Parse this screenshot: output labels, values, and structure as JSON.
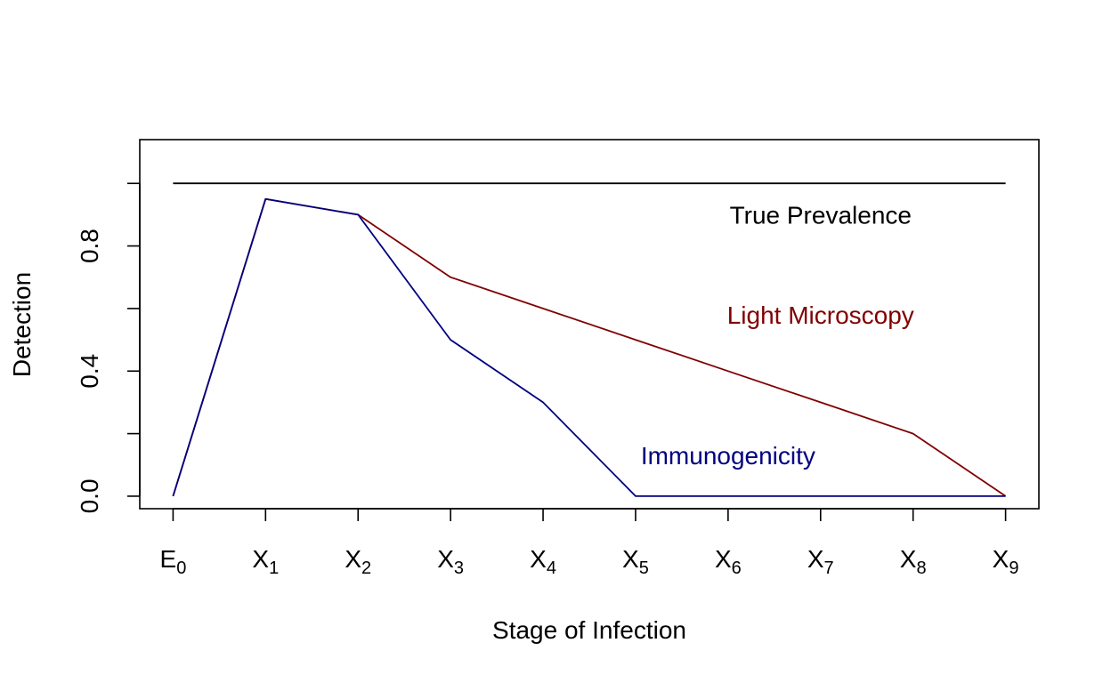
{
  "chart_data": {
    "type": "line",
    "xlabel": "Stage of Infection",
    "ylabel": "Detection",
    "x_ticks": [
      {
        "main": "E",
        "sub": "0"
      },
      {
        "main": "X",
        "sub": "1"
      },
      {
        "main": "X",
        "sub": "2"
      },
      {
        "main": "X",
        "sub": "3"
      },
      {
        "main": "X",
        "sub": "4"
      },
      {
        "main": "X",
        "sub": "5"
      },
      {
        "main": "X",
        "sub": "6"
      },
      {
        "main": "X",
        "sub": "7"
      },
      {
        "main": "X",
        "sub": "8"
      },
      {
        "main": "X",
        "sub": "9"
      }
    ],
    "y_ticks": [
      0,
      0.2,
      0.4,
      0.6,
      0.8,
      1.0
    ],
    "y_tick_labels": [
      "0.0",
      "",
      "0.4",
      "",
      "0.8",
      ""
    ],
    "ylim": [
      -0.04,
      1.14
    ],
    "xlim": [
      -0.36,
      9.36
    ],
    "grid": false,
    "legend": "none",
    "series": [
      {
        "key": "true-prevalence",
        "color": "#000000",
        "x": [
          0,
          9
        ],
        "values": [
          1.0,
          1.0
        ]
      },
      {
        "key": "light-microscopy",
        "color": "#800000",
        "x": [
          0,
          1,
          2,
          3,
          4,
          5,
          6,
          7,
          8,
          9
        ],
        "values": [
          0,
          0.95,
          0.9,
          0.7,
          0.6,
          0.5,
          0.4,
          0.3,
          0.2,
          0
        ]
      },
      {
        "key": "immunogenicity",
        "color": "#000080",
        "x": [
          0,
          1,
          2,
          3,
          4,
          5,
          6,
          7,
          8,
          9
        ],
        "values": [
          0,
          0.95,
          0.9,
          0.5,
          0.3,
          0,
          0,
          0,
          0,
          0
        ]
      }
    ],
    "annotations": [
      {
        "text": "True Prevalence",
        "series_key": "true-prevalence",
        "color": "#000000",
        "x": 7.0,
        "y": 0.9
      },
      {
        "text": "Light Microscopy",
        "series_key": "light-microscopy",
        "color": "#800000",
        "x": 7.0,
        "y": 0.58
      },
      {
        "text": "Immunogenicity",
        "series_key": "immunogenicity",
        "color": "#000080",
        "x": 6.0,
        "y": 0.13
      }
    ]
  }
}
